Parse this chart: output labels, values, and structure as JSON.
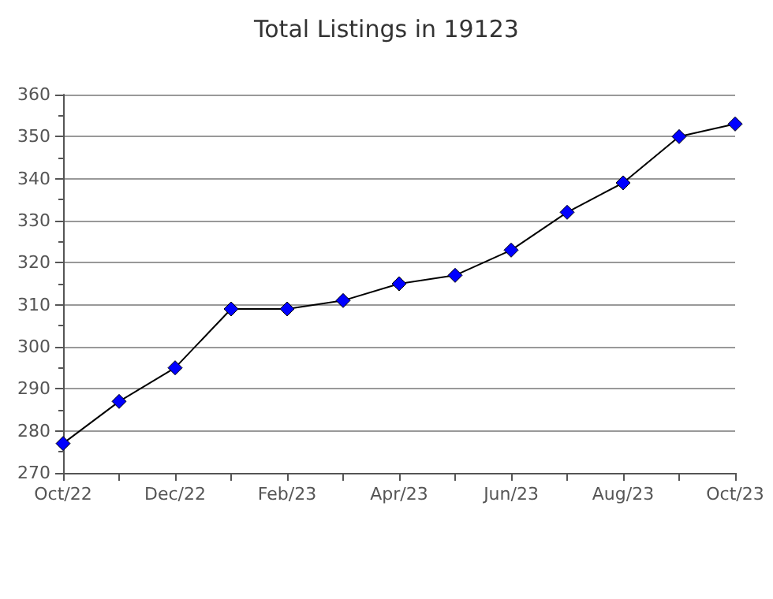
{
  "chart_data": {
    "type": "line",
    "title": "Total Listings in 19123",
    "categories": [
      "Oct/22",
      null,
      "Dec/22",
      null,
      "Feb/23",
      null,
      "Apr/23",
      null,
      "Jun/23",
      null,
      "Aug/23",
      null,
      "Oct/23"
    ],
    "series": [
      {
        "color": "#0000ff",
        "values": [
          277,
          287,
          295,
          309,
          309,
          311,
          315,
          317,
          323,
          332,
          339,
          350,
          353
        ]
      }
    ],
    "ylim": [
      270,
      360
    ],
    "yticks": [
      270,
      280,
      290,
      300,
      310,
      320,
      330,
      340,
      350,
      360
    ],
    "grid": "y",
    "marker": "diamond",
    "line_style": "solid"
  }
}
